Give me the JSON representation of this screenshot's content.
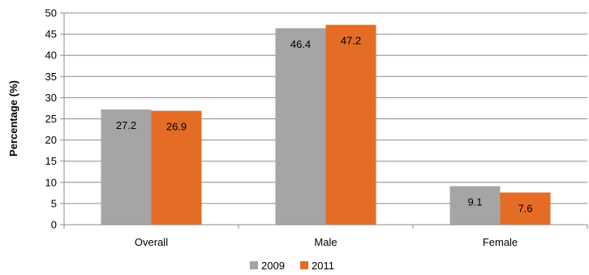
{
  "chart_data": {
    "type": "bar",
    "categories": [
      "Overall",
      "Male",
      "Female"
    ],
    "series": [
      {
        "name": "2009",
        "values": [
          27.2,
          46.4,
          9.1
        ],
        "color": "#a5a5a5"
      },
      {
        "name": "2011",
        "values": [
          26.9,
          47.2,
          7.6
        ],
        "color": "#e46c24"
      }
    ],
    "data_labels": [
      [
        "27.2",
        "46.4",
        "9.1"
      ],
      [
        "26.9",
        "47.2",
        "7.6"
      ]
    ],
    "ylabel": "Percentage   (%)",
    "xlabel": "",
    "ylim": [
      0,
      50
    ],
    "yticks": [
      0,
      5,
      10,
      15,
      20,
      25,
      30,
      35,
      40,
      45,
      50
    ],
    "grid": true,
    "legend_position": "bottom"
  }
}
